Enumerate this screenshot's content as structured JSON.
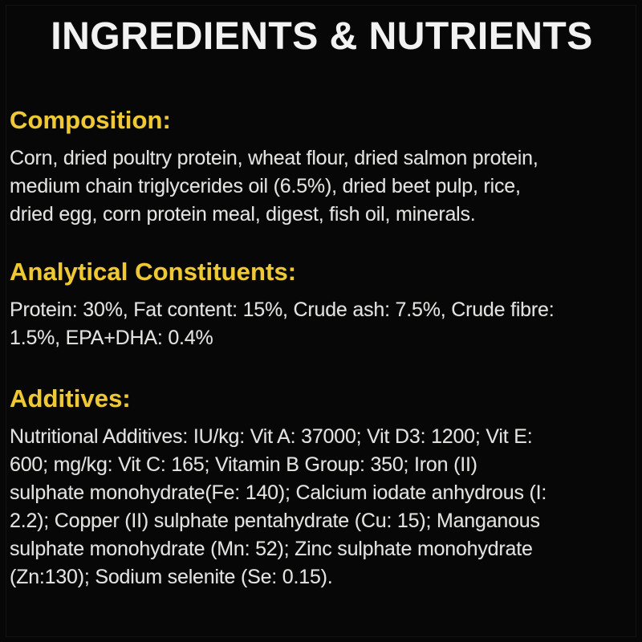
{
  "header": {
    "title": "INGREDIENTS & NUTRIENTS"
  },
  "colors": {
    "background": "#070707",
    "title_text": "#f2f2f2",
    "section_heading": "#eec935",
    "body_text": "#e3e3e1"
  },
  "sections": [
    {
      "heading": "Composition:",
      "lines": [
        "Corn, dried poultry protein, wheat flour, dried salmon protein,",
        "medium chain triglycerides oil (6.5%), dried beet pulp, rice,",
        "dried egg, corn protein meal, digest, fish oil, minerals."
      ]
    },
    {
      "heading": "Analytical Constituents:",
      "lines": [
        "Protein: 30%, Fat content: 15%, Crude ash: 7.5%, Crude fibre:",
        "1.5%, EPA+DHA: 0.4%"
      ]
    },
    {
      "heading": "Additives:",
      "lines": [
        "Nutritional Additives: IU/kg: Vit A: 37000; Vit D3: 1200; Vit E:",
        "600; mg/kg: Vit C: 165; Vitamin B Group: 350; Iron (II)",
        "sulphate monohydrate(Fe: 140); Calcium iodate anhydrous (I:",
        "2.2); Copper (II) sulphate pentahydrate (Cu: 15); Manganous",
        "sulphate monohydrate (Mn: 52); Zinc sulphate monohydrate",
        "(Zn:130); Sodium selenite (Se: 0.15)."
      ]
    }
  ]
}
